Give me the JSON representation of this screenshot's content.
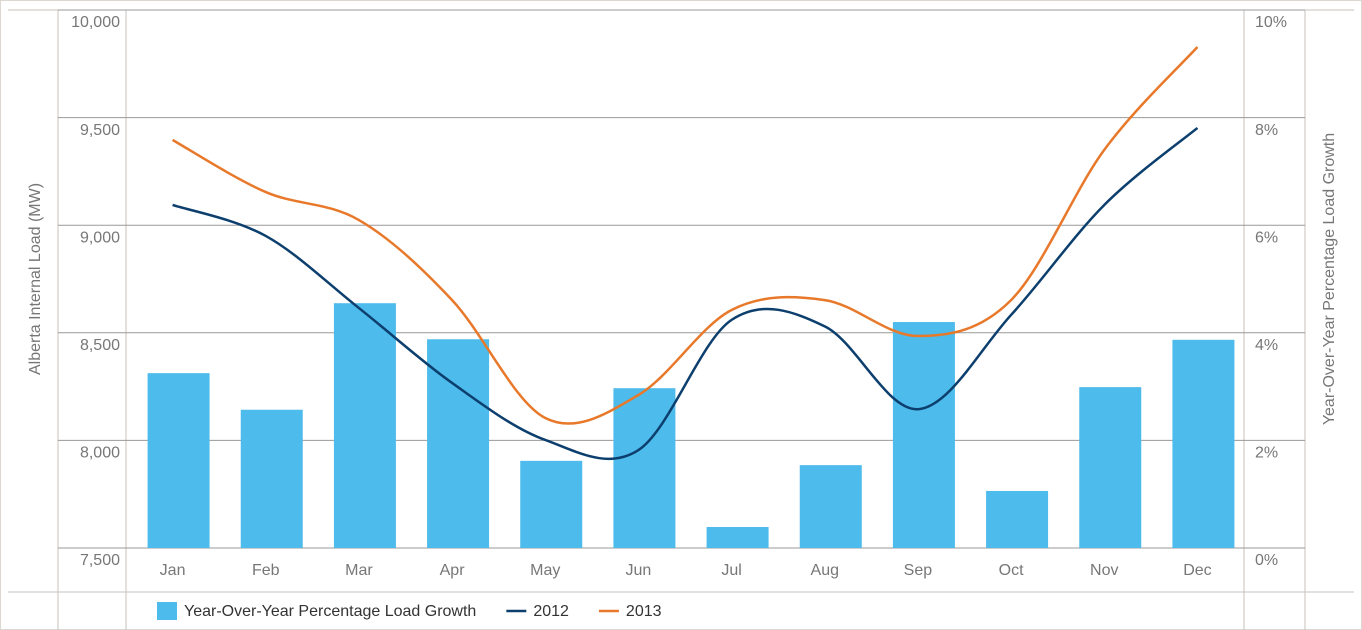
{
  "chart_data": {
    "type": "bar-line",
    "categories": [
      "Jan",
      "Feb",
      "Mar",
      "Apr",
      "May",
      "Jun",
      "Jul",
      "Aug",
      "Sep",
      "Oct",
      "Nov",
      "Dec"
    ],
    "ylabel": "Alberta Internal Load (MW)",
    "y2label": "Year-Over-Year Percentage Load Growth",
    "ylim": [
      7500,
      10000
    ],
    "yticks": [
      {
        "value": 7500,
        "label": "7,500"
      },
      {
        "value": 8000,
        "label": "8,000"
      },
      {
        "value": 8500,
        "label": "8,500"
      },
      {
        "value": 9000,
        "label": "9,000"
      },
      {
        "value": 9500,
        "label": "9,500"
      },
      {
        "value": 10000,
        "label": "10,000"
      }
    ],
    "y2lim": [
      0,
      10
    ],
    "y2ticks": [
      {
        "value": 0,
        "label": "0%"
      },
      {
        "value": 2,
        "label": "2%"
      },
      {
        "value": 4,
        "label": "4%"
      },
      {
        "value": 6,
        "label": "6%"
      },
      {
        "value": 8,
        "label": "8%"
      },
      {
        "value": 10,
        "label": "10%"
      }
    ],
    "grid": true,
    "series": [
      {
        "name": "Year-Over-Year Percentage Load Growth",
        "kind": "bar",
        "axis": "y2",
        "color": "#4dbbeb",
        "values": [
          3.25,
          2.57,
          4.55,
          3.88,
          1.62,
          2.97,
          0.39,
          1.54,
          4.2,
          1.06,
          2.99,
          3.87
        ]
      },
      {
        "name": "2012",
        "kind": "line",
        "color": "#0d3f6e",
        "values": [
          9094,
          8950,
          8615,
          8267,
          8002,
          7955,
          8560,
          8530,
          8145,
          8583,
          9094,
          9452
        ]
      },
      {
        "name": "2013",
        "kind": "line",
        "color": "#e8782a",
        "values": [
          9396,
          9154,
          9024,
          8652,
          8104,
          8211,
          8606,
          8652,
          8485,
          8652,
          9350,
          9828
        ]
      }
    ]
  }
}
